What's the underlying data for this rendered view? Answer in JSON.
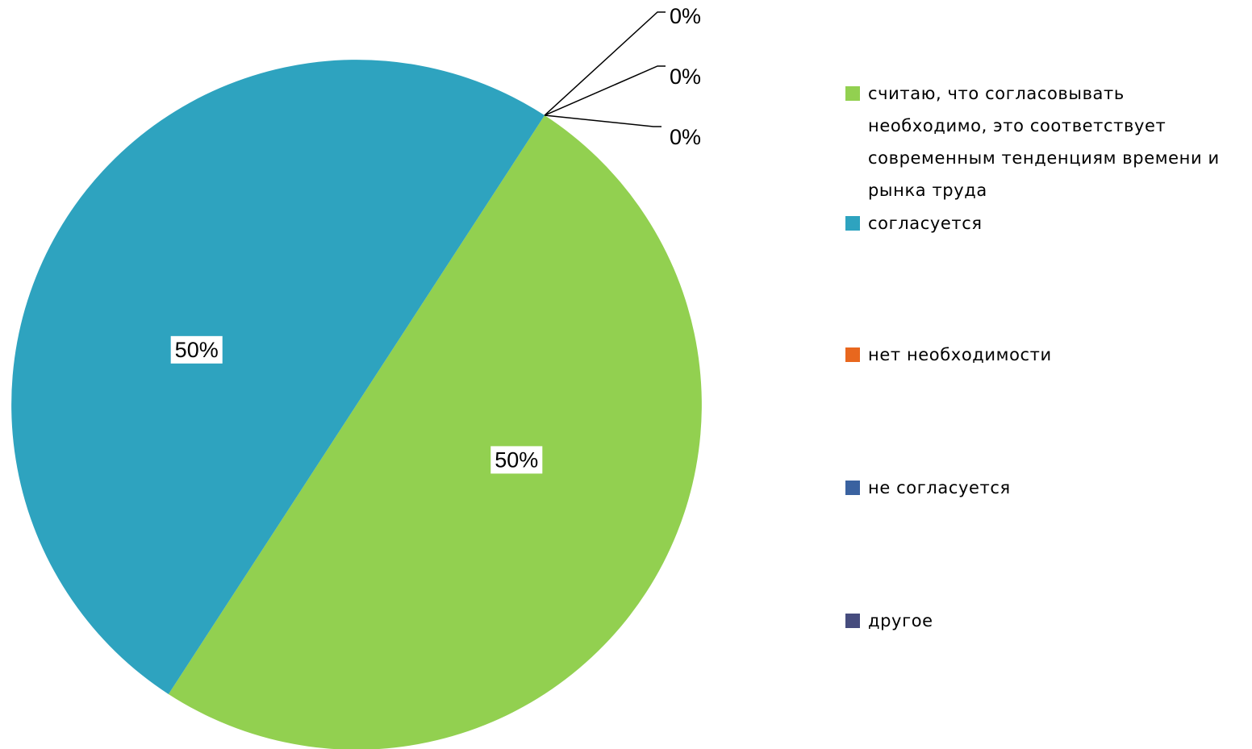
{
  "chart_data": {
    "type": "pie",
    "categories": [
      "считаю, что согласовывать необходимо, это соответствует современным тенденциям времени и рынка труда",
      "согласуется",
      "нет необходимости",
      "не согласуется",
      "другое"
    ],
    "values": [
      50,
      50,
      0,
      0,
      0
    ],
    "value_labels": [
      "50%",
      "50%",
      "0%",
      "0%",
      "0%"
    ],
    "colors": [
      "#92d050",
      "#2ea3bf",
      "#e8671e",
      "#3a62a0",
      "#464c7e"
    ],
    "legend": "right"
  }
}
